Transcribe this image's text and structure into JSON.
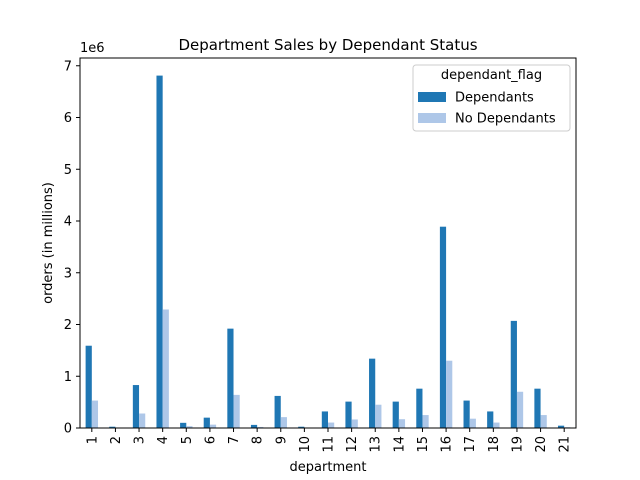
{
  "chart_data": {
    "type": "bar",
    "title": "Department Sales by Dependant Status",
    "xlabel": "department",
    "ylabel": "orders (in millions)",
    "y_multiplier_label": "1e6",
    "categories": [
      "1",
      "2",
      "3",
      "4",
      "5",
      "6",
      "7",
      "8",
      "9",
      "10",
      "11",
      "12",
      "13",
      "14",
      "15",
      "16",
      "17",
      "18",
      "19",
      "20",
      "21"
    ],
    "ylim": [
      0,
      7150000
    ],
    "yticks": [
      0,
      1000000,
      2000000,
      3000000,
      4000000,
      5000000,
      6000000,
      7000000
    ],
    "ytick_labels": [
      "0",
      "1",
      "2",
      "3",
      "4",
      "5",
      "6",
      "7"
    ],
    "series": [
      {
        "name": "Dependants",
        "color": "#1f77b4",
        "values": [
          1590000,
          25000,
          830000,
          6810000,
          100000,
          200000,
          1920000,
          60000,
          620000,
          25000,
          320000,
          510000,
          1340000,
          510000,
          760000,
          3890000,
          530000,
          320000,
          2070000,
          760000,
          45000
        ]
      },
      {
        "name": "No Dependants",
        "color": "#aec7e8",
        "values": [
          530000,
          8000,
          280000,
          2290000,
          35000,
          65000,
          640000,
          20000,
          210000,
          8000,
          105000,
          165000,
          450000,
          170000,
          250000,
          1300000,
          180000,
          105000,
          700000,
          250000,
          15000
        ]
      }
    ],
    "legend": {
      "title": "dependant_flag",
      "placement": "top-right"
    },
    "grid": false
  }
}
